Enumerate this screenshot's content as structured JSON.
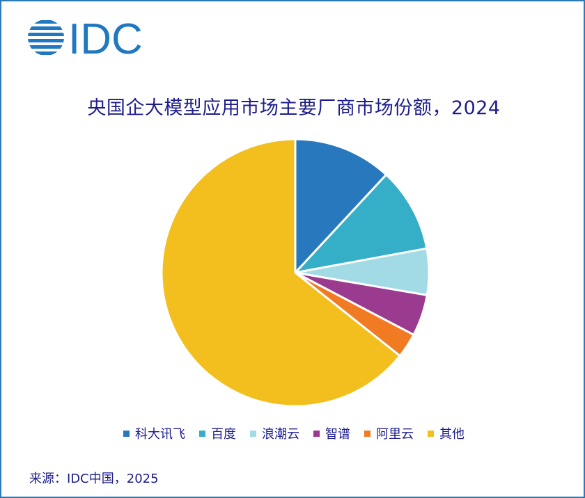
{
  "logo": {
    "text": "IDC",
    "color": "#1f78c1"
  },
  "chart_data": {
    "type": "pie",
    "title": "央国企大模型应用市场主要厂商市场份额，2024",
    "categories": [
      "科大讯飞",
      "百度",
      "浪潮云",
      "智谱",
      "阿里云",
      "其他"
    ],
    "values": [
      11.9,
      10.2,
      5.6,
      5.0,
      3.0,
      64.3
    ],
    "colors": [
      "#2878bd",
      "#35aec8",
      "#a2dbe6",
      "#9b3b8f",
      "#f07b22",
      "#f3bf1e"
    ],
    "legend": "bottom"
  },
  "source": "来源：IDC中国，2025"
}
